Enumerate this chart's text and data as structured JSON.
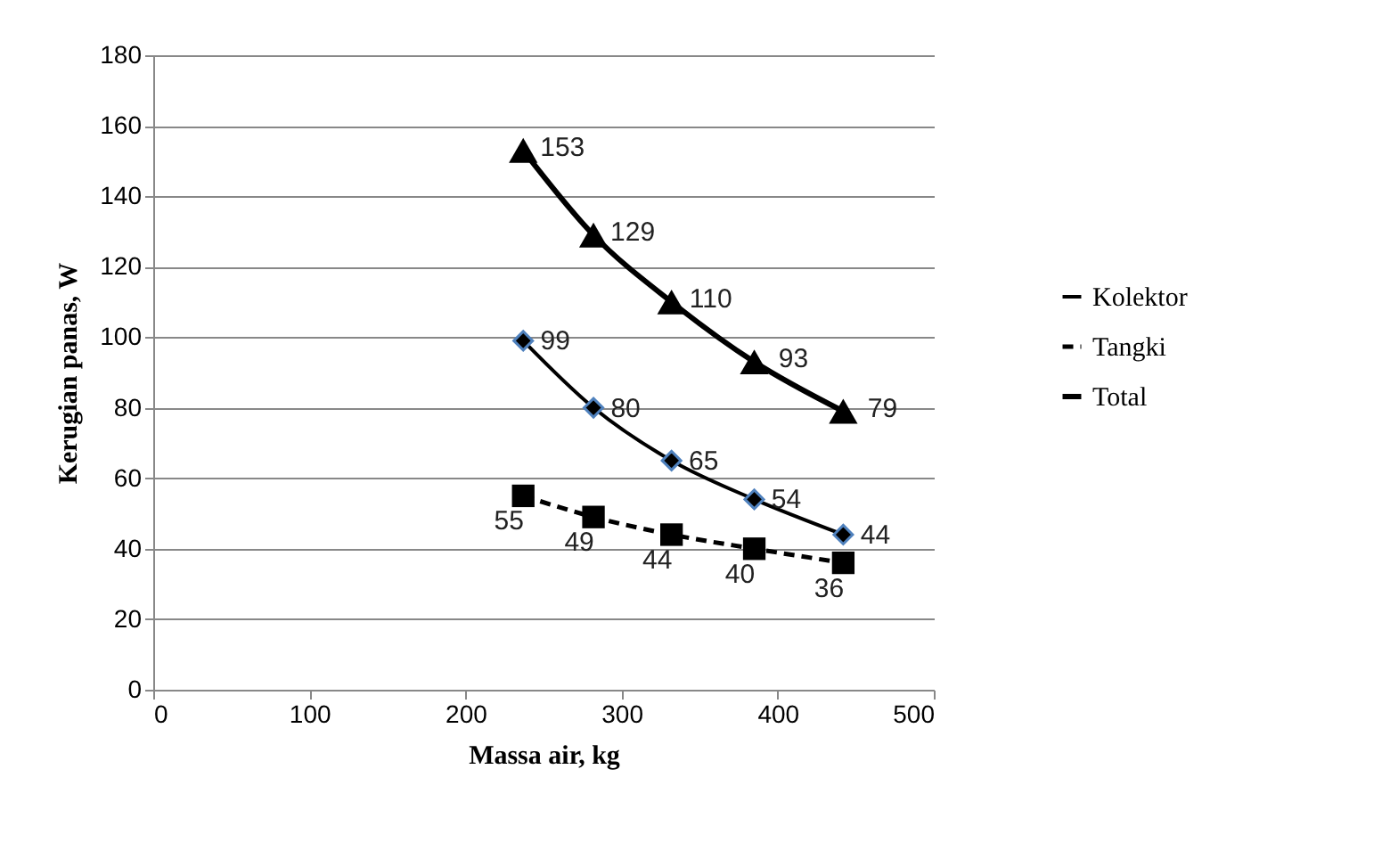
{
  "chart_data": {
    "type": "line",
    "xlabel": "Massa air, kg",
    "ylabel": "Kerugian panas, W",
    "x": [
      237,
      282,
      332,
      385,
      442
    ],
    "series": [
      {
        "name": "Kolektor",
        "color": "#000000",
        "marker": "diamond",
        "line_style": "solid",
        "values": [
          99,
          80,
          65,
          54,
          44
        ]
      },
      {
        "name": "Tangki",
        "color": "#000000",
        "marker": "square",
        "line_style": "dashed",
        "values": [
          55,
          49,
          44,
          40,
          36
        ]
      },
      {
        "name": "Total",
        "color": "#000000",
        "marker": "triangle",
        "line_style": "solid",
        "values": [
          153,
          129,
          110,
          93,
          79
        ]
      }
    ],
    "xlim": [
      0,
      500
    ],
    "xticks": [
      0,
      100,
      200,
      300,
      400,
      500
    ],
    "ylim": [
      0,
      180
    ],
    "yticks": [
      0,
      20,
      40,
      60,
      80,
      100,
      120,
      140,
      160,
      180
    ],
    "grid": "y",
    "legend": "right",
    "data_labels": true
  }
}
